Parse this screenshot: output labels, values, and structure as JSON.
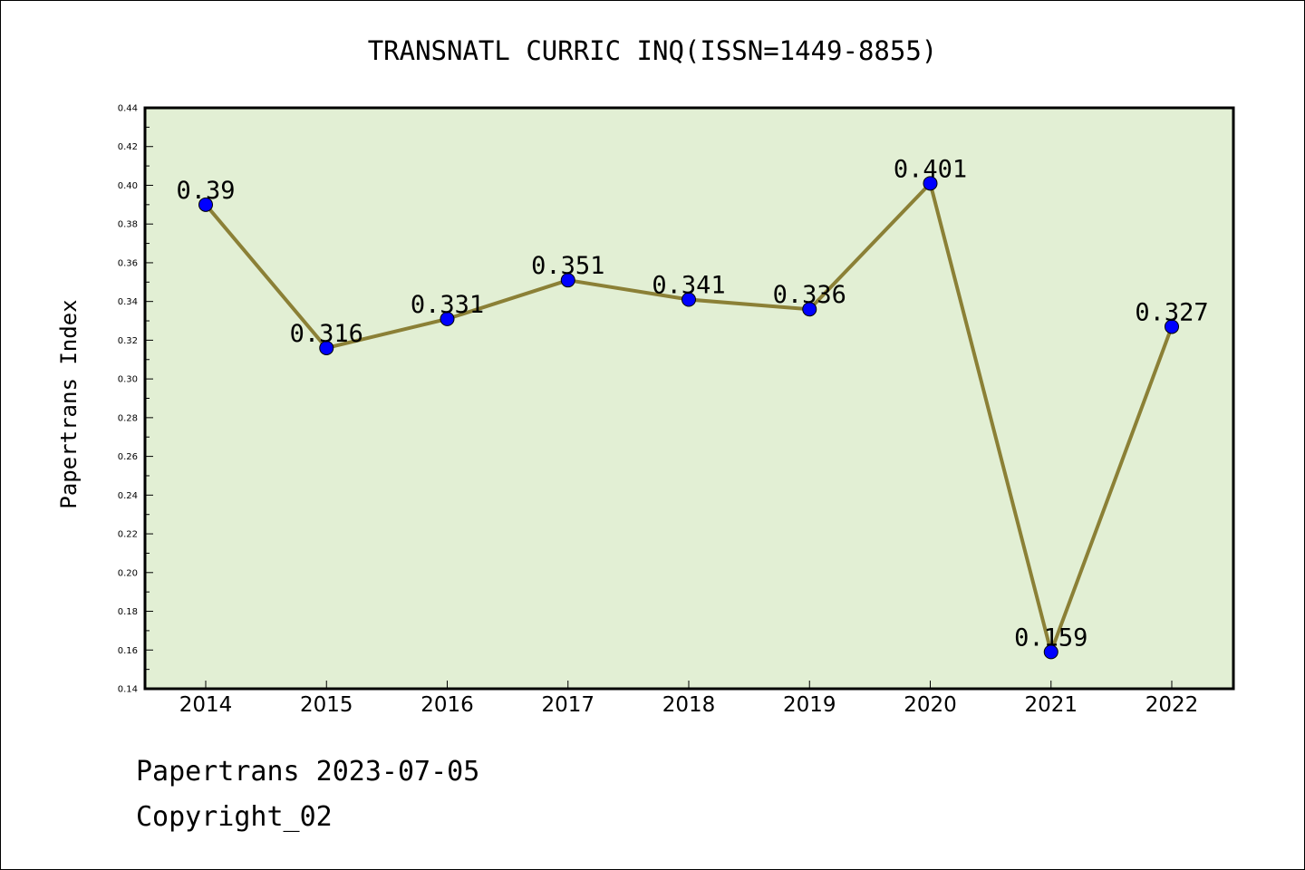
{
  "chart_data": {
    "type": "line",
    "title": "TRANSNATL CURRIC INQ(ISSN=1449-8855)",
    "xlabel": "",
    "ylabel": "Papertrans Index",
    "categories": [
      "2014",
      "2015",
      "2016",
      "2017",
      "2018",
      "2019",
      "2020",
      "2021",
      "2022"
    ],
    "series": [
      {
        "values": [
          0.39,
          0.316,
          0.331,
          0.351,
          0.341,
          0.336,
          0.401,
          0.159,
          0.327
        ],
        "labels": [
          "0.39",
          "0.316",
          "0.331",
          "0.351",
          "0.341",
          "0.336",
          "0.401",
          "0.159",
          "0.327"
        ]
      }
    ],
    "ylim": [
      0.14,
      0.44
    ],
    "yticks": [
      "0.14",
      "0.16",
      "0.18",
      "0.20",
      "0.22",
      "0.24",
      "0.26",
      "0.28",
      "0.30",
      "0.32",
      "0.34",
      "0.36",
      "0.38",
      "0.40",
      "0.42",
      "0.44"
    ],
    "grid": false,
    "colors": {
      "plot_background": "#e2efd4",
      "line": "#8b8036",
      "marker": "#0000ff",
      "axis": "#000000"
    }
  },
  "footer": {
    "line1": "Papertrans 2023-07-05",
    "line2": "Copyright_02"
  }
}
